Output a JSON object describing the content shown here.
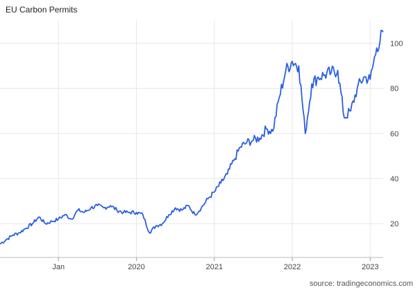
{
  "chart_data": {
    "type": "line",
    "title": "EU Carbon Permits",
    "source": "source: tradingeconomics.com",
    "xlabel": "",
    "ylabel": "",
    "x_tick_labels": [
      "Jan",
      "2020",
      "2021",
      "2022",
      "2023"
    ],
    "y_tick_labels": [
      "20",
      "40",
      "60",
      "80",
      "100"
    ],
    "y_ticks": [
      20,
      40,
      60,
      80,
      100
    ],
    "ylim": [
      5,
      110
    ],
    "xlim": [
      "2018-04",
      "2023-03"
    ],
    "grid": true,
    "line_color": "#2a5fe0",
    "series": [
      {
        "x": [
          "2018-04",
          "2018-05",
          "2018-06",
          "2018-07",
          "2018-08",
          "2018-09",
          "2018-10",
          "2018-11",
          "2018-12",
          "2019-01",
          "2019-02",
          "2019-03",
          "2019-04",
          "2019-05",
          "2019-06",
          "2019-07",
          "2019-08",
          "2019-09",
          "2019-10",
          "2019-11",
          "2019-12",
          "2020-01",
          "2020-02",
          "2020-03",
          "2020-04",
          "2020-05",
          "2020-06",
          "2020-07",
          "2020-08",
          "2020-09",
          "2020-10",
          "2020-11",
          "2020-12",
          "2021-01",
          "2021-02",
          "2021-03",
          "2021-04",
          "2021-05",
          "2021-06",
          "2021-07",
          "2021-08",
          "2021-09",
          "2021-10",
          "2021-11",
          "2021-12",
          "2022-01",
          "2022-02",
          "2022-03",
          "2022-04",
          "2022-05",
          "2022-06",
          "2022-07",
          "2022-08",
          "2022-09",
          "2022-10",
          "2022-11",
          "2022-12",
          "2023-01",
          "2023-02",
          "2023-03"
        ],
        "values": [
          11,
          13,
          15,
          16,
          18,
          20,
          23,
          20,
          21,
          22,
          24,
          22,
          26,
          25,
          27,
          28,
          27,
          28,
          26,
          25,
          25,
          25,
          24,
          16,
          19,
          20,
          24,
          27,
          26,
          28,
          24,
          27,
          31,
          34,
          38,
          42,
          48,
          54,
          56,
          57,
          58,
          62,
          61,
          76,
          88,
          92,
          90,
          60,
          82,
          85,
          86,
          87,
          88,
          67,
          70,
          80,
          85,
          84,
          98,
          105
        ]
      }
    ]
  }
}
